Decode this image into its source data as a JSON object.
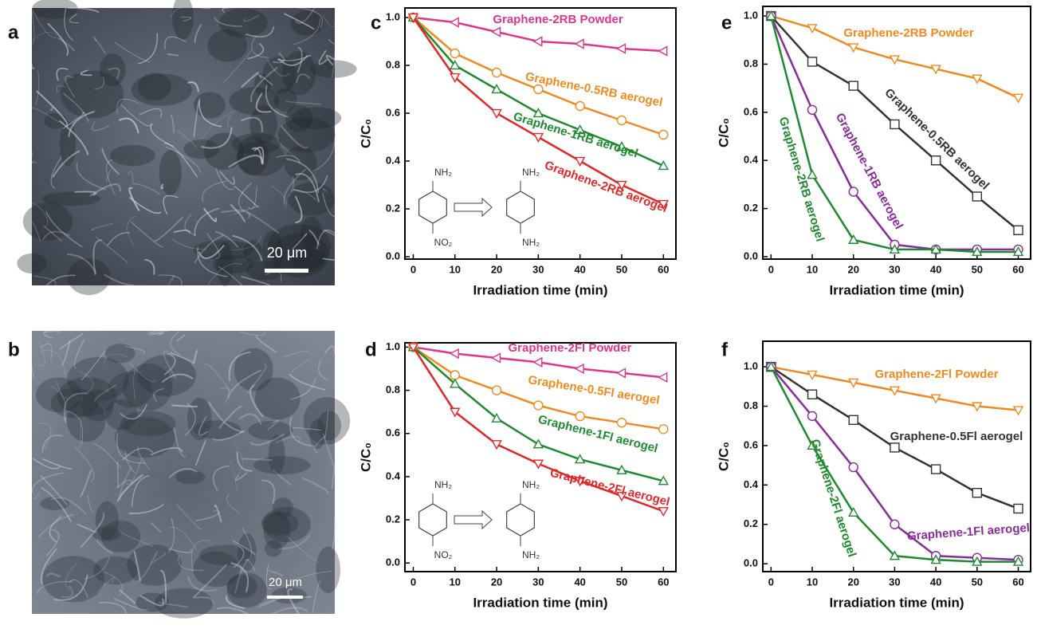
{
  "images": [
    {
      "panel": "a",
      "scale_bar": "20 μm"
    },
    {
      "panel": "b",
      "scale_bar": "20 μm"
    }
  ],
  "chart_data": [
    {
      "type": "line",
      "panel": "c",
      "x_label": "Irradiation time (min)",
      "y_label": "C/C₀",
      "x": [
        0,
        10,
        20,
        30,
        40,
        50,
        60
      ],
      "xlim": [
        -2,
        63
      ],
      "xticks": [
        0,
        10,
        20,
        30,
        40,
        50,
        60
      ],
      "ylim": [
        -0.01,
        1.04
      ],
      "yticks": [
        {
          "value": 0,
          "label": "0.0"
        },
        {
          "value": 0.2,
          "label": "0.2"
        },
        {
          "value": 0.4,
          "label": "0.4"
        },
        {
          "value": 0.6,
          "label": "0.6"
        },
        {
          "value": 0.8,
          "label": "0.8"
        },
        {
          "value": 1,
          "label": "1.0"
        }
      ],
      "annotations": [
        "NH₂",
        "NO₂",
        "NH₂",
        "NH₂"
      ],
      "series": [
        {
          "name": "Graphene-2RB Powder",
          "color": "#e0358a",
          "values": [
            1.0,
            0.98,
            0.94,
            0.9,
            0.89,
            0.87,
            0.86
          ]
        },
        {
          "name": "Graphene-0.5RB aerogel",
          "color": "#f08a1e",
          "values": [
            1.0,
            0.85,
            0.77,
            0.7,
            0.63,
            0.57,
            0.51
          ]
        },
        {
          "name": "Graphene-1RB aerogel",
          "color": "#1e8a2e",
          "values": [
            1.0,
            0.8,
            0.7,
            0.6,
            0.53,
            0.46,
            0.38
          ]
        },
        {
          "name": "Graphene-2RB aerogel",
          "color": "#e02828",
          "values": [
            1.0,
            0.75,
            0.6,
            0.5,
            0.4,
            0.3,
            0.22
          ]
        }
      ]
    },
    {
      "type": "line",
      "panel": "d",
      "x_label": "Irradiation time (min)",
      "y_label": "C/C₀",
      "x": [
        0,
        10,
        20,
        30,
        40,
        50,
        60
      ],
      "xlim": [
        -2,
        63
      ],
      "xticks": [
        0,
        10,
        20,
        30,
        40,
        50,
        60
      ],
      "ylim": [
        -0.04,
        1.02
      ],
      "yticks": [
        {
          "value": 0,
          "label": "0.0"
        },
        {
          "value": 0.2,
          "label": "0.2"
        },
        {
          "value": 0.4,
          "label": "0.4"
        },
        {
          "value": 0.6,
          "label": "0.6"
        },
        {
          "value": 0.8,
          "label": "0.8"
        },
        {
          "value": 1,
          "label": "1.0"
        }
      ],
      "annotations": [
        "NH₂",
        "NO₂",
        "NH₂",
        "NH₂"
      ],
      "series": [
        {
          "name": "Graphene-2Fl Powder",
          "color": "#e0358a",
          "values": [
            1.0,
            0.97,
            0.95,
            0.93,
            0.9,
            0.88,
            0.86
          ]
        },
        {
          "name": "Graphene-0.5Fl aerogel",
          "color": "#f08a1e",
          "values": [
            1.0,
            0.87,
            0.8,
            0.73,
            0.68,
            0.65,
            0.62
          ]
        },
        {
          "name": "Graphene-1Fl aerogel",
          "color": "#1e8a2e",
          "values": [
            1.0,
            0.83,
            0.67,
            0.55,
            0.48,
            0.43,
            0.38
          ]
        },
        {
          "name": "Graphene-2Fl aerogel",
          "color": "#e02828",
          "values": [
            1.0,
            0.7,
            0.55,
            0.46,
            0.38,
            0.31,
            0.24
          ]
        }
      ]
    },
    {
      "type": "line",
      "panel": "e",
      "x_label": "Irradiation time (min)",
      "y_label": "C/C₀",
      "x": [
        0,
        10,
        20,
        30,
        40,
        50,
        60
      ],
      "xlim": [
        -2,
        63
      ],
      "xticks": [
        0,
        10,
        20,
        30,
        40,
        50,
        60
      ],
      "ylim": [
        -0.01,
        1.04
      ],
      "yticks": [
        {
          "value": 0,
          "label": "0.0"
        },
        {
          "value": 0.2,
          "label": "0.2"
        },
        {
          "value": 0.4,
          "label": "0.4"
        },
        {
          "value": 0.6,
          "label": "0.6"
        },
        {
          "value": 0.8,
          "label": "0.8"
        },
        {
          "value": 1,
          "label": "1.0"
        }
      ],
      "series": [
        {
          "name": "Graphene-2RB Powder",
          "color": "#f08a1e",
          "values": [
            1.0,
            0.95,
            0.87,
            0.82,
            0.78,
            0.74,
            0.66
          ]
        },
        {
          "name": "Graphene-0.5RB aerogel",
          "color": "#333333",
          "values": [
            1.0,
            0.81,
            0.71,
            0.55,
            0.4,
            0.25,
            0.11
          ]
        },
        {
          "name": "Graphene-1RB aerogel",
          "color": "#8a2b9a",
          "values": [
            1.0,
            0.61,
            0.27,
            0.05,
            0.03,
            0.03,
            0.03
          ]
        },
        {
          "name": "Graphene-2RB aerogel",
          "color": "#1e8a2e",
          "values": [
            1.0,
            0.34,
            0.07,
            0.03,
            0.03,
            0.02,
            0.02
          ]
        }
      ]
    },
    {
      "type": "line",
      "panel": "f",
      "x_label": "Irradiation time (min)",
      "y_label": "C/C₀",
      "x": [
        0,
        10,
        20,
        30,
        40,
        50,
        60
      ],
      "xlim": [
        -2,
        63
      ],
      "xticks": [
        0,
        10,
        20,
        30,
        40,
        50,
        60
      ],
      "ylim": [
        -0.04,
        1.13
      ],
      "yticks": [
        {
          "value": 0,
          "label": "0.0"
        },
        {
          "value": 0.2,
          "label": "0.2"
        },
        {
          "value": 0.4,
          "label": "0.4"
        },
        {
          "value": 0.6,
          "label": "0.6"
        },
        {
          "value": 0.8,
          "label": "0.8"
        },
        {
          "value": 1,
          "label": "1.0"
        }
      ],
      "series": [
        {
          "name": "Graphene-2Fl Powder",
          "color": "#f08a1e",
          "values": [
            1.0,
            0.96,
            0.92,
            0.88,
            0.84,
            0.8,
            0.78
          ]
        },
        {
          "name": "Graphene-0.5Fl aerogel",
          "color": "#333333",
          "values": [
            1.0,
            0.86,
            0.73,
            0.59,
            0.48,
            0.36,
            0.28
          ]
        },
        {
          "name": "Graphene-1Fl aerogel",
          "color": "#8a2b9a",
          "values": [
            1.0,
            0.75,
            0.49,
            0.2,
            0.04,
            0.03,
            0.02
          ]
        },
        {
          "name": "Graphene-2Fl aerogel",
          "color": "#1e8a2e",
          "values": [
            1.0,
            0.6,
            0.26,
            0.04,
            0.02,
            0.01,
            0.01
          ]
        }
      ]
    }
  ]
}
